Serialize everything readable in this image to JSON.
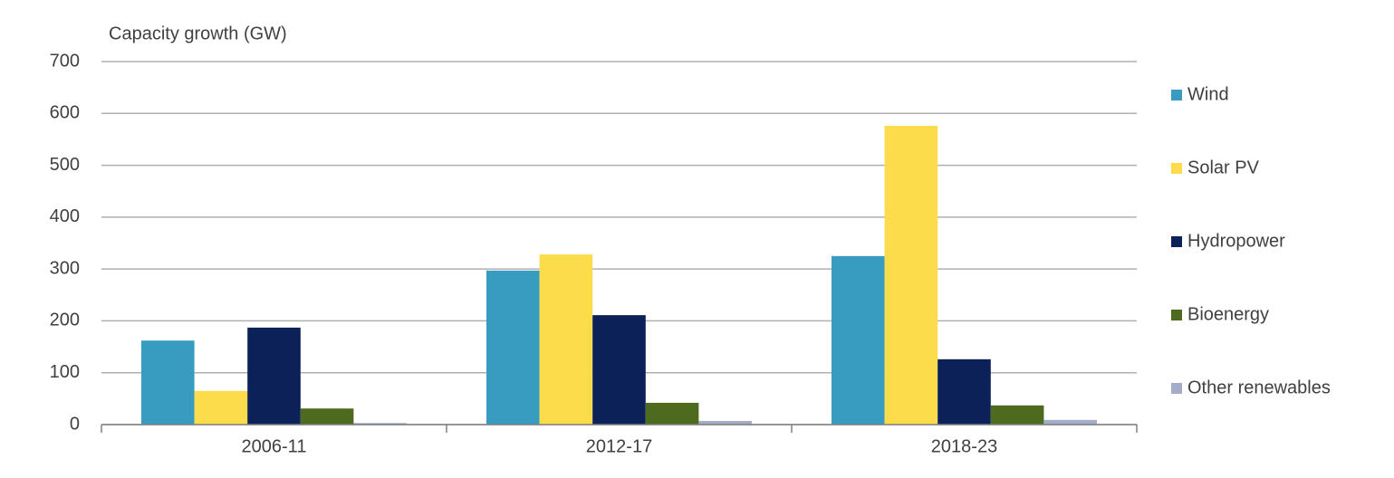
{
  "chart_data": {
    "type": "bar",
    "title": "Capacity growth (GW)",
    "categories": [
      "2006-11",
      "2012-17",
      "2018-23"
    ],
    "series": [
      {
        "name": "Wind",
        "color": "#379cbf",
        "values": [
          162,
          297,
          325
        ]
      },
      {
        "name": "Solar PV",
        "color": "#fcdc4a",
        "values": [
          65,
          328,
          576
        ]
      },
      {
        "name": "Hydropower",
        "color": "#0b2157",
        "values": [
          187,
          211,
          126
        ]
      },
      {
        "name": "Bioenergy",
        "color": "#4d6a1f",
        "values": [
          31,
          42,
          37
        ]
      },
      {
        "name": "Other renewables",
        "color": "#a3adc9",
        "values": [
          3,
          7,
          9
        ]
      }
    ],
    "ylim": [
      0,
      700
    ],
    "yticks": [
      0,
      100,
      200,
      300,
      400,
      500,
      600,
      700
    ],
    "grid": true,
    "legend": "right"
  }
}
